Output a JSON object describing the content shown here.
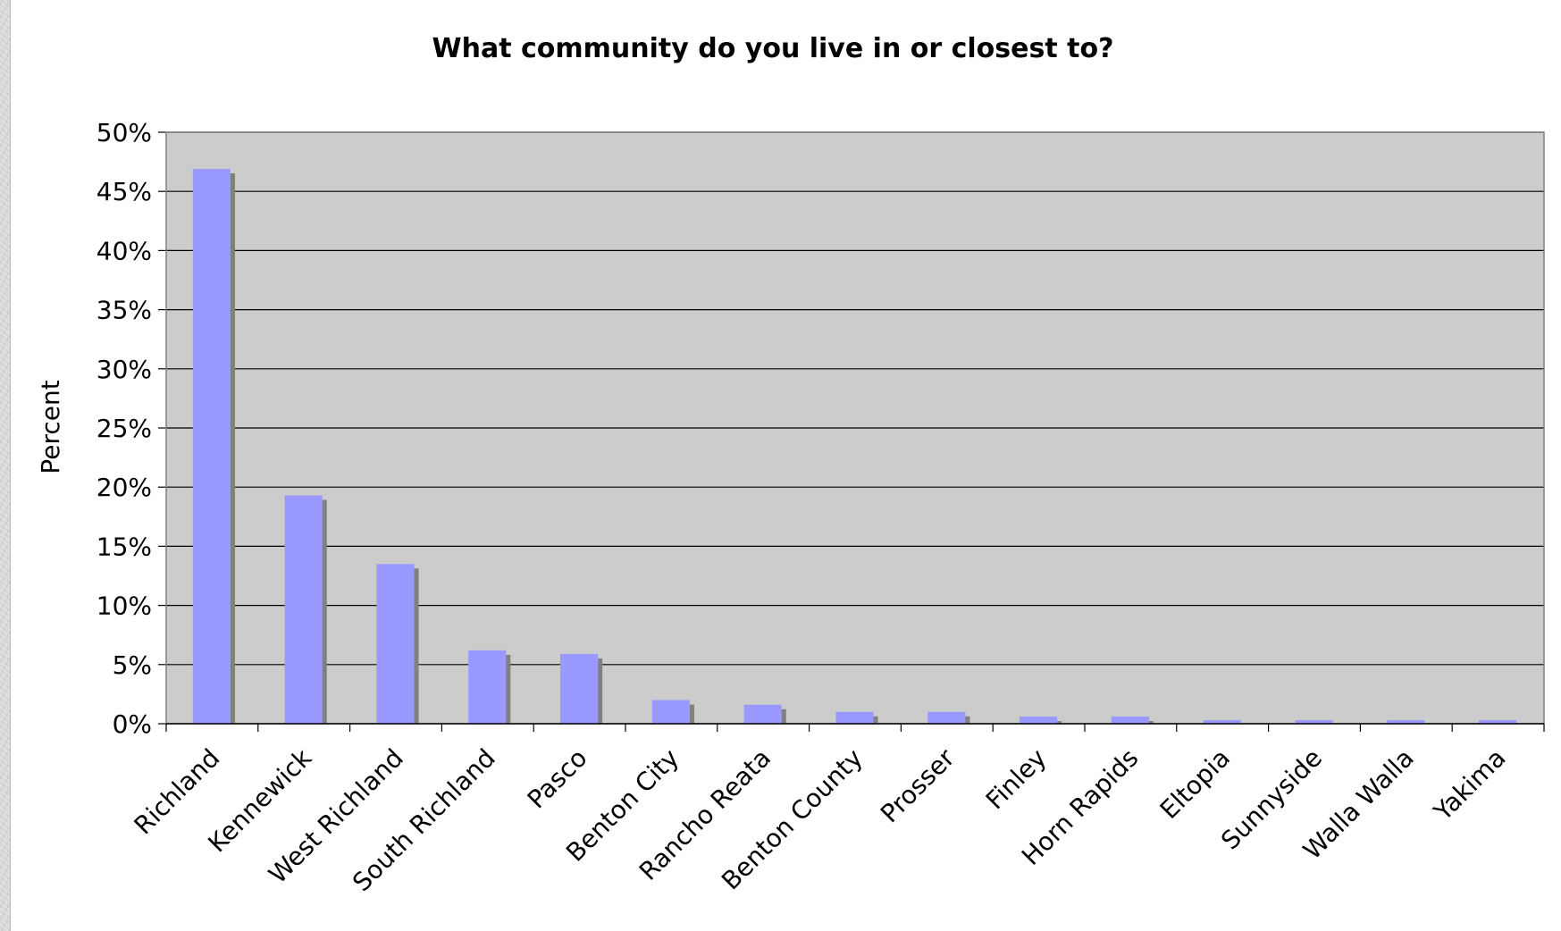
{
  "chart_data": {
    "type": "bar",
    "title": "What community do you live in or closest to?",
    "xlabel": "",
    "ylabel": "Percent",
    "ylim": [
      0,
      50
    ],
    "yticks": [
      "0%",
      "5%",
      "10%",
      "15%",
      "20%",
      "25%",
      "30%",
      "35%",
      "40%",
      "45%",
      "50%"
    ],
    "grid": true,
    "legend": "none",
    "categories": [
      "Richland",
      "Kennewick",
      "West Richland",
      "South Richland",
      "Pasco",
      "Benton City",
      "Rancho Reata",
      "Benton County",
      "Prosser",
      "Finley",
      "Horn Rapids",
      "Eltopia",
      "Sunnyside",
      "Walla Walla",
      "Yakima"
    ],
    "values": [
      46.9,
      19.3,
      13.5,
      6.2,
      5.9,
      2.0,
      1.6,
      1.0,
      1.0,
      0.6,
      0.6,
      0.3,
      0.3,
      0.3,
      0.3
    ],
    "colors": {
      "bar": "#9999ff",
      "bar_shadow": "#808080",
      "plot_background": "#cccccc",
      "gridline": "#000000",
      "frame": "#808080"
    }
  }
}
